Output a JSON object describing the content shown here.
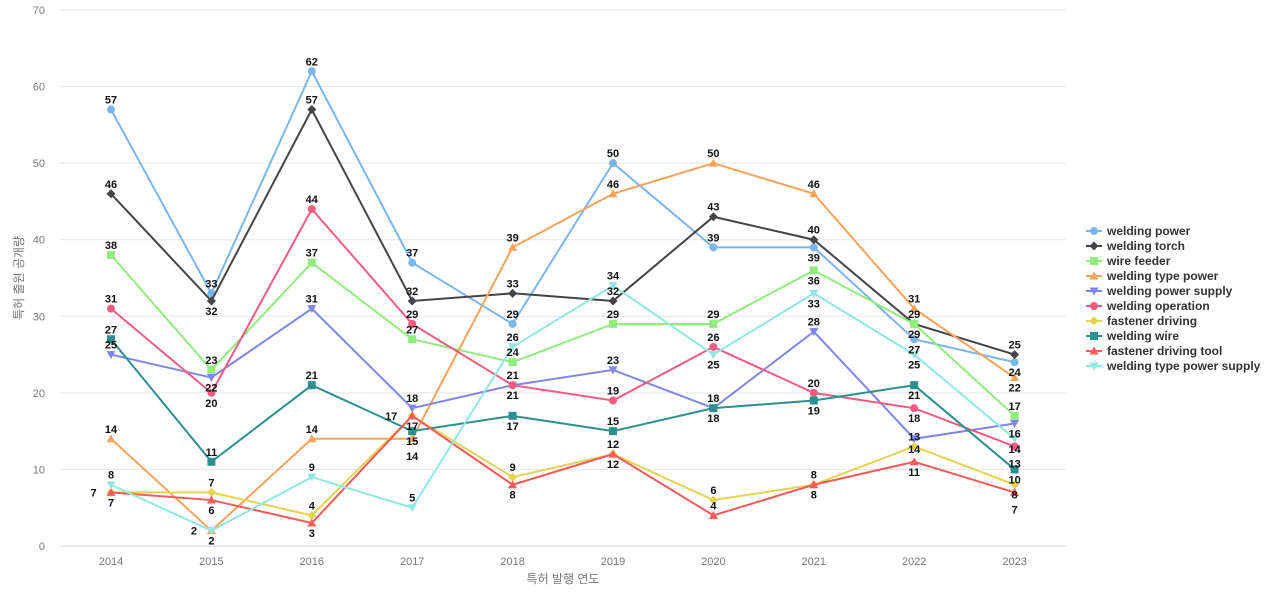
{
  "chart_data": {
    "type": "line",
    "title": "",
    "xlabel": "특허 발행 연도",
    "ylabel": "특허 출원 공개량",
    "ylim": [
      0,
      70
    ],
    "yticks": [
      0,
      10,
      20,
      30,
      40,
      50,
      60,
      70
    ],
    "grid": true,
    "legend_position": "right",
    "x": [
      "2014",
      "2015",
      "2016",
      "2017",
      "2018",
      "2019",
      "2020",
      "2021",
      "2022",
      "2023"
    ],
    "series": [
      {
        "name": "welding power",
        "color": "#7ab6ea",
        "marker": "circle",
        "values": [
          57,
          33,
          62,
          37,
          29,
          50,
          39,
          39,
          27,
          24
        ]
      },
      {
        "name": "welding torch",
        "color": "#434348",
        "marker": "diamond",
        "values": [
          46,
          32,
          57,
          32,
          33,
          32,
          43,
          40,
          29,
          25
        ]
      },
      {
        "name": "wire feeder",
        "color": "#90ed7d",
        "marker": "square",
        "values": [
          38,
          23,
          37,
          27,
          24,
          29,
          29,
          36,
          29,
          17
        ]
      },
      {
        "name": "welding type power",
        "color": "#f7a35c",
        "marker": "triangle",
        "values": [
          14,
          2,
          14,
          14,
          39,
          46,
          50,
          46,
          31,
          22
        ]
      },
      {
        "name": "welding power supply",
        "color": "#8085e9",
        "marker": "triangle-down",
        "values": [
          25,
          22,
          31,
          18,
          21,
          23,
          18,
          28,
          14,
          16
        ]
      },
      {
        "name": "welding operation",
        "color": "#f15c80",
        "marker": "circle",
        "values": [
          31,
          20,
          44,
          29,
          21,
          19,
          26,
          20,
          18,
          13
        ]
      },
      {
        "name": "fastener driving",
        "color": "#e4d354",
        "marker": "diamond",
        "values": [
          7,
          7,
          4,
          17,
          9,
          12,
          6,
          8,
          13,
          8
        ]
      },
      {
        "name": "welding wire",
        "color": "#2b908f",
        "marker": "square",
        "values": [
          27,
          11,
          21,
          15,
          17,
          15,
          18,
          19,
          21,
          10
        ]
      },
      {
        "name": "fastener driving tool",
        "color": "#f45b5b",
        "marker": "triangle",
        "values": [
          7,
          6,
          3,
          17,
          8,
          12,
          4,
          8,
          11,
          7
        ]
      },
      {
        "name": "welding type power supply",
        "color": "#91e8e1",
        "marker": "triangle-down",
        "values": [
          8,
          2,
          9,
          5,
          26,
          34,
          25,
          33,
          25,
          14
        ]
      }
    ]
  }
}
